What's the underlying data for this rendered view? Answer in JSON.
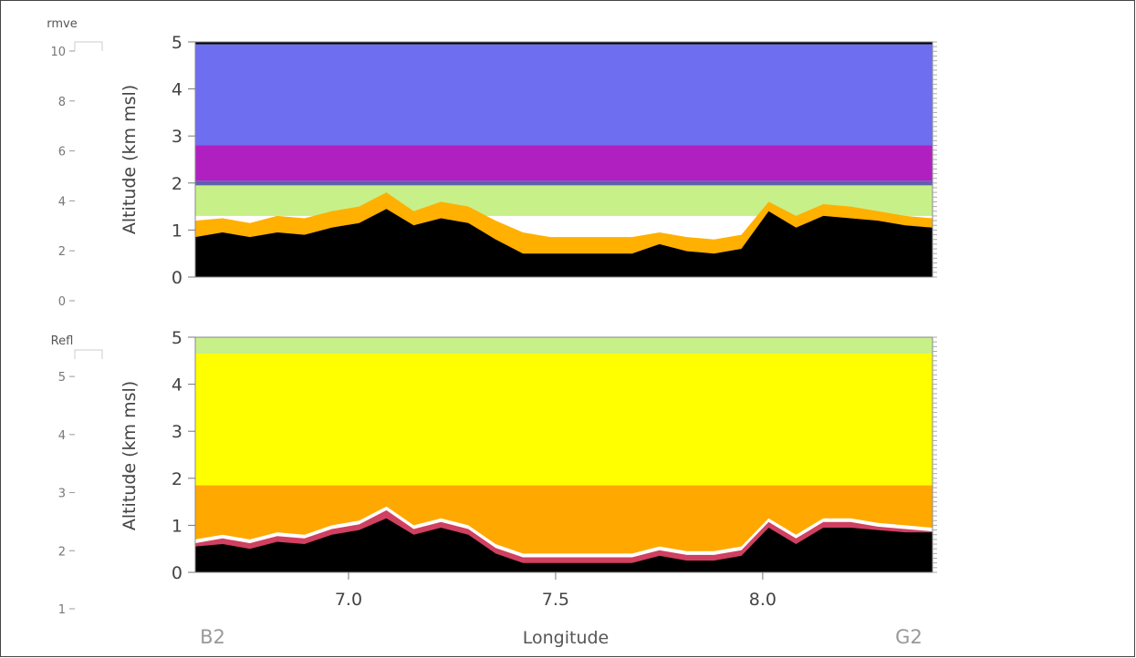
{
  "chart_data": [
    {
      "type": "heatmap",
      "title": "",
      "xlabel": "",
      "ylabel": "Altitude (km msl)",
      "xlim": [
        6.63,
        8.41
      ],
      "ylim": [
        0,
        5
      ],
      "yticks": [
        "0",
        "1",
        "2",
        "3",
        "4",
        "5"
      ],
      "colorbar": {
        "label": "rmve",
        "tick_labels": [
          "0",
          "2",
          "4",
          "6",
          "8",
          "10"
        ],
        "range": [
          0,
          10
        ],
        "colors": [
          "#000000",
          "#c000c0",
          "#6a6aa8",
          "#5a5ad8",
          "#6e6ef0",
          "#008800",
          "#88a000",
          "#b0b000",
          "#90c000",
          "#c0ff80",
          "#ffff00",
          "#ffc000",
          "#ffa000",
          "#ff8000",
          "#c03060"
        ]
      },
      "layers": {
        "terrain_km": [
          0.85,
          0.95,
          0.85,
          0.95,
          0.9,
          1.05,
          1.15,
          1.45,
          1.1,
          1.25,
          1.15,
          0.8,
          0.5,
          0.5,
          0.5,
          0.5,
          0.5,
          0.7,
          0.55,
          0.5,
          0.6,
          1.4,
          1.05,
          1.3,
          1.25,
          1.2,
          1.1,
          1.05
        ],
        "orange_base_km": [
          1.2,
          1.25,
          1.15,
          1.3,
          1.25,
          1.4,
          1.5,
          1.8,
          1.4,
          1.6,
          1.5,
          1.2,
          0.95,
          0.85,
          0.85,
          0.85,
          0.85,
          0.95,
          0.85,
          0.8,
          0.9,
          1.6,
          1.3,
          1.55,
          1.5,
          1.4,
          1.3,
          1.25
        ],
        "bands_km": [
          {
            "from": 1.3,
            "to": 1.95,
            "color": "#c8f088"
          },
          {
            "from": 1.95,
            "to": 2.05,
            "color": "#6060b0"
          },
          {
            "from": 2.05,
            "to": 2.8,
            "color": "#b020c0"
          },
          {
            "from": 2.8,
            "to": 4.95,
            "color": "#6e6ef0"
          },
          {
            "from": 4.95,
            "to": 5.0,
            "color": "#000000"
          }
        ]
      }
    },
    {
      "type": "heatmap",
      "title": "",
      "xlabel": "Longitude",
      "ylabel": "Altitude (km msl)",
      "xlim": [
        6.63,
        8.41
      ],
      "ylim": [
        0,
        5
      ],
      "xticks": [
        "7.0",
        "7.5",
        "8.0"
      ],
      "xtick_values": [
        7.0,
        7.5,
        8.0
      ],
      "yticks": [
        "0",
        "1",
        "2",
        "3",
        "4",
        "5"
      ],
      "endpoint_labels": {
        "left": "B2",
        "right": "G2"
      },
      "colorbar": {
        "label": "Refl",
        "tick_labels": [
          "1",
          "2",
          "3",
          "4",
          "5"
        ],
        "range": [
          1,
          5.3
        ],
        "colors": [
          "#000000",
          "#c000c0",
          "#6a6aa8",
          "#5a5ad8",
          "#6e6ef0",
          "#008800",
          "#88a000",
          "#b0b000",
          "#90c000",
          "#c0ff80",
          "#ffff00",
          "#ffc000",
          "#ffa000",
          "#ff8000",
          "#c03060"
        ]
      },
      "layers": {
        "terrain_km": [
          0.55,
          0.6,
          0.5,
          0.65,
          0.6,
          0.8,
          0.9,
          1.15,
          0.8,
          0.95,
          0.8,
          0.4,
          0.2,
          0.2,
          0.2,
          0.2,
          0.2,
          0.35,
          0.25,
          0.25,
          0.35,
          0.95,
          0.6,
          0.95,
          0.95,
          0.9,
          0.85,
          0.85
        ],
        "bright_band_km": [
          0.7,
          0.8,
          0.7,
          0.85,
          0.8,
          1.0,
          1.1,
          1.4,
          1.0,
          1.15,
          1.0,
          0.6,
          0.4,
          0.4,
          0.4,
          0.4,
          0.4,
          0.55,
          0.45,
          0.45,
          0.55,
          1.15,
          0.8,
          1.15,
          1.15,
          1.05,
          1.0,
          0.95
        ],
        "bands_km": [
          {
            "from": 0.3,
            "to": 1.85,
            "color": "#ffa800"
          },
          {
            "from": 1.85,
            "to": 4.65,
            "color": "#ffff00"
          },
          {
            "from": 4.65,
            "to": 5.0,
            "color": "#c8f088"
          }
        ]
      }
    }
  ]
}
